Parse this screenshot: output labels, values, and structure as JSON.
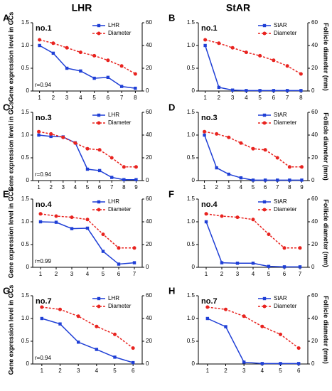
{
  "headers": [
    "LHR",
    "StAR"
  ],
  "chart_data": [
    {
      "type": "line",
      "letter": "A",
      "annotations": [
        "no.1",
        "r=0.94"
      ],
      "ylabel": "Gene expression level in GCs",
      "categories": [
        "1",
        "2",
        "3",
        "4",
        "5",
        "6",
        "7",
        "8"
      ],
      "ylim": [
        0,
        1.5
      ],
      "yticks": [
        0,
        0.5,
        {
          "value": 1,
          "label": "1.0"
        },
        1.5
      ],
      "y2lim": [
        0,
        60
      ],
      "y2ticks": [
        0,
        20,
        40,
        60
      ],
      "series": [
        {
          "name": "LHR",
          "color": "#1f3fd6",
          "values": [
            1.0,
            0.83,
            0.5,
            0.44,
            0.28,
            0.3,
            0.1,
            0.06
          ]
        },
        {
          "name": "Diameter",
          "color": "#e8231f",
          "axis": "y2",
          "values": [
            45,
            42,
            38,
            34,
            31,
            27,
            22,
            15
          ]
        }
      ]
    },
    {
      "type": "line",
      "letter": "B",
      "annotations": [
        "no.1"
      ],
      "y2label": "Follicle diameter (mm)",
      "categories": [
        "1",
        "2",
        "3",
        "4",
        "5",
        "6",
        "7",
        "8"
      ],
      "ylim": [
        0,
        1.5
      ],
      "yticks": [
        0,
        0.5,
        {
          "value": 1,
          "label": "1.0"
        },
        1.5
      ],
      "y2lim": [
        0,
        60
      ],
      "y2ticks": [
        0,
        20,
        40,
        60
      ],
      "series": [
        {
          "name": "StAR",
          "color": "#1f3fd6",
          "values": [
            1.0,
            0.08,
            0.02,
            0.01,
            0.01,
            0.01,
            0.01,
            0.01
          ]
        },
        {
          "name": "Diameter",
          "color": "#e8231f",
          "axis": "y2",
          "values": [
            45,
            42,
            38,
            34,
            31,
            27,
            22,
            15
          ]
        }
      ]
    },
    {
      "type": "line",
      "letter": "C",
      "annotations": [
        "no.3",
        "r=0.94"
      ],
      "ylabel": "Gene expression level in GCs",
      "categories": [
        "1",
        "2",
        "3",
        "4",
        "5",
        "6",
        "7",
        "8",
        "9"
      ],
      "ylim": [
        0,
        1.5
      ],
      "yticks": [
        0,
        0.5,
        {
          "value": 1,
          "label": "1.0"
        },
        1.5
      ],
      "y2lim": [
        0,
        60
      ],
      "y2ticks": [
        0,
        20,
        40,
        60
      ],
      "series": [
        {
          "name": "LHR",
          "color": "#1f3fd6",
          "values": [
            1.0,
            0.97,
            0.96,
            0.83,
            0.25,
            0.22,
            0.07,
            0.02,
            0.02
          ]
        },
        {
          "name": "Diameter",
          "color": "#e8231f",
          "axis": "y2",
          "values": [
            43,
            41,
            38,
            33,
            28,
            27,
            20,
            12,
            12
          ]
        }
      ]
    },
    {
      "type": "line",
      "letter": "D",
      "annotations": [
        "no.3"
      ],
      "y2label": "Follicle diameter (mm)",
      "categories": [
        "1",
        "2",
        "3",
        "4",
        "5",
        "6",
        "7",
        "8",
        "9"
      ],
      "ylim": [
        0,
        1.5
      ],
      "yticks": [
        0,
        0.5,
        {
          "value": 1,
          "label": "1.0"
        },
        1.5
      ],
      "y2lim": [
        0,
        60
      ],
      "y2ticks": [
        0,
        20,
        40,
        60
      ],
      "series": [
        {
          "name": "StAR",
          "color": "#1f3fd6",
          "values": [
            1.0,
            0.28,
            0.14,
            0.06,
            0.01,
            0.01,
            0.01,
            0.01,
            0.01
          ]
        },
        {
          "name": "Diameter",
          "color": "#e8231f",
          "axis": "y2",
          "values": [
            43,
            41,
            38,
            33,
            28,
            27,
            20,
            12,
            12
          ]
        }
      ]
    },
    {
      "type": "line",
      "letter": "E",
      "annotations": [
        "no.4",
        "r=0.99"
      ],
      "ylabel": "Gene expression level in GCs",
      "categories": [
        "1",
        "2",
        "3",
        "4",
        "5",
        "6",
        "7"
      ],
      "ylim": [
        0,
        1.5
      ],
      "yticks": [
        0,
        0.5,
        {
          "value": 1,
          "label": "1.0"
        },
        1.5
      ],
      "y2lim": [
        0,
        60
      ],
      "y2ticks": [
        0,
        20,
        40,
        60
      ],
      "series": [
        {
          "name": "LHR",
          "color": "#1f3fd6",
          "values": [
            1.0,
            0.99,
            0.85,
            0.86,
            0.35,
            0.07,
            0.1
          ]
        },
        {
          "name": "Diameter",
          "color": "#e8231f",
          "axis": "y2",
          "values": [
            47,
            45,
            44,
            42,
            29,
            17,
            17
          ]
        }
      ]
    },
    {
      "type": "line",
      "letter": "F",
      "annotations": [
        "no.4"
      ],
      "y2label": "Follicle diameter (mm)",
      "categories": [
        "1",
        "2",
        "3",
        "4",
        "5",
        "6",
        "7"
      ],
      "ylim": [
        0,
        1.5
      ],
      "yticks": [
        0,
        0.5,
        {
          "value": 1,
          "label": "1.0"
        },
        1.5
      ],
      "y2lim": [
        0,
        60
      ],
      "y2ticks": [
        0,
        20,
        40,
        60
      ],
      "series": [
        {
          "name": "StAR",
          "color": "#1f3fd6",
          "values": [
            1.0,
            0.1,
            0.09,
            0.09,
            0.02,
            0.01,
            0.01
          ]
        },
        {
          "name": "Diameter",
          "color": "#e8231f",
          "axis": "y2",
          "values": [
            47,
            45,
            44,
            42,
            29,
            17,
            17
          ]
        }
      ]
    },
    {
      "type": "line",
      "letter": "G",
      "annotations": [
        "no.7",
        "r=0.94"
      ],
      "ylabel": "Gene expression level in GCs",
      "categories": [
        "1",
        "2",
        "3",
        "4",
        "5",
        "6"
      ],
      "ylim": [
        0,
        1.5
      ],
      "yticks": [
        0,
        0.5,
        {
          "value": 1,
          "label": "1.0"
        },
        1.5
      ],
      "y2lim": [
        0,
        60
      ],
      "y2ticks": [
        0,
        20,
        40,
        60
      ],
      "series": [
        {
          "name": "LHR",
          "color": "#1f3fd6",
          "values": [
            1.0,
            0.88,
            0.48,
            0.32,
            0.15,
            0.03
          ]
        },
        {
          "name": "Diameter",
          "color": "#e8231f",
          "axis": "y2",
          "values": [
            50,
            48,
            42,
            33,
            26,
            14
          ]
        }
      ]
    },
    {
      "type": "line",
      "letter": "H",
      "annotations": [
        "no.7"
      ],
      "y2label": "Follicle diameter (mm)",
      "categories": [
        "1",
        "2",
        "3",
        "4",
        "5",
        "6"
      ],
      "ylim": [
        0,
        1.5
      ],
      "yticks": [
        0,
        0.5,
        {
          "value": 1,
          "label": "1.0"
        },
        1.5
      ],
      "y2lim": [
        0,
        60
      ],
      "y2ticks": [
        0,
        20,
        40,
        60
      ],
      "series": [
        {
          "name": "StAR",
          "color": "#1f3fd6",
          "values": [
            1.0,
            0.82,
            0.04,
            0.01,
            0.01,
            0.01
          ]
        },
        {
          "name": "Diameter",
          "color": "#e8231f",
          "axis": "y2",
          "values": [
            50,
            48,
            42,
            33,
            26,
            14
          ]
        }
      ]
    }
  ]
}
